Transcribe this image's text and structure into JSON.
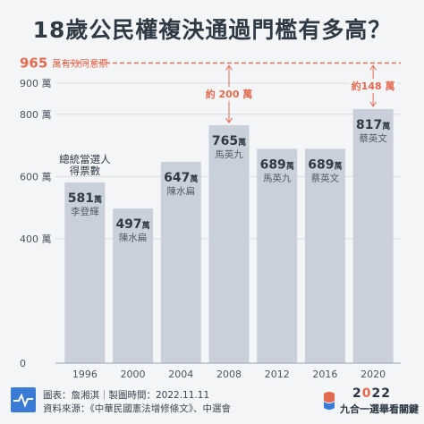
{
  "title": "18歲公民權複決通過門檻有多高？",
  "threshold": {
    "value": 965,
    "value_label": "965",
    "text": "萬有效同意票",
    "color": "#e36a4f"
  },
  "callouts": [
    {
      "year": "2008",
      "text": "約 200 萬"
    },
    {
      "year": "2020",
      "text": "約148 萬"
    }
  ],
  "winner_note": "總統當選人\n得票數",
  "footer": {
    "line1": "圖表：詹湘淇｜製圖時間：2022.11.11",
    "line2": "資料來源：《中華民國憲法增修條文》、中選會",
    "brand_year_a": "2",
    "brand_year_b": "0",
    "brand_year_c": "22",
    "brand_name": "九合一選舉看關鍵"
  },
  "icons": {
    "left_logo": "pulse-line-icon",
    "right_logo": "ballot-mark-icon"
  },
  "colors": {
    "bar": "#c9d0da",
    "text": "#2f3a44",
    "grid": "#d8dce2",
    "accent": "#e36a4f",
    "logo": "#3a7bd5"
  },
  "chart_data": {
    "type": "bar",
    "title": "18歲公民權複決通過門檻有多高？",
    "categories": [
      "1996",
      "2000",
      "2004",
      "2008",
      "2012",
      "2016",
      "2020"
    ],
    "values": [
      581,
      497,
      647,
      765,
      689,
      689,
      817
    ],
    "value_labels": [
      "581",
      "497",
      "647",
      "765",
      "689",
      "689",
      "817"
    ],
    "unit": "萬",
    "winners": [
      "李登輝",
      "陳水扁",
      "陳水扁",
      "馬英九",
      "馬英九",
      "蔡英文",
      "蔡英文"
    ],
    "yticks": [
      0,
      400,
      600,
      800,
      900
    ],
    "ytick_labels": [
      "0",
      "400 萬",
      "600 萬",
      "800 萬",
      "900 萬"
    ],
    "ylim": [
      0,
      965
    ],
    "reference_line": 965,
    "grid": true,
    "xlabel": "",
    "ylabel": ""
  }
}
